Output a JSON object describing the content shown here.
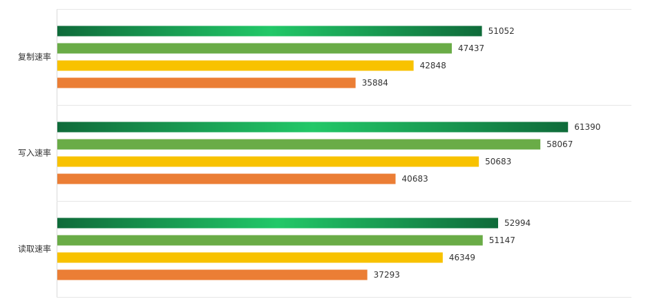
{
  "chart_data": {
    "type": "bar",
    "orientation": "horizontal",
    "categories": [
      "复制速率",
      "写入速率",
      "读取速率"
    ],
    "series": [
      {
        "values": [
          51052,
          61390,
          52994
        ],
        "color": "#1fc86a",
        "gradient": [
          "#0f6b3a",
          "#22c868",
          "#0f6b3a"
        ]
      },
      {
        "values": [
          47437,
          58067,
          51147
        ],
        "color": "#6aac47"
      },
      {
        "values": [
          42848,
          50683,
          46349
        ],
        "color": "#f8c200"
      },
      {
        "values": [
          35884,
          40683,
          37293
        ],
        "color": "#eb7e35"
      }
    ],
    "xlim": [
      0,
      69000
    ],
    "grid": false,
    "legend": "none",
    "title": "",
    "xlabel": "",
    "ylabel": ""
  }
}
